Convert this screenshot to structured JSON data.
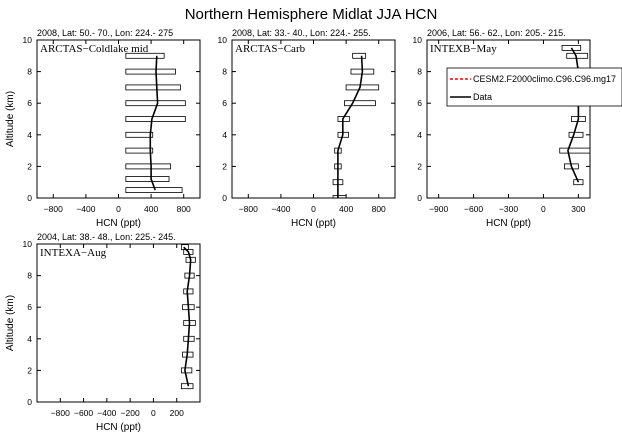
{
  "title": "Northern Hemisphere Midlat JJA HCN",
  "legend": {
    "entries": [
      {
        "label": "CESM2.F2000climo.C96.C96.mg17",
        "color": "#ff0000",
        "dash": true
      },
      {
        "label": "Data",
        "color": "#000000",
        "dash": false
      }
    ]
  },
  "chart_data": [
    {
      "type": "line",
      "subtitle": "2008, Lat:  50.- 70., Lon: 224.- 275",
      "panel_label": "ARCTAS−Coldlake mid",
      "xlabel": "HCN (ppt)",
      "ylabel": "Altitude (km)",
      "xlim": [
        -1000,
        1000
      ],
      "ylim": [
        0,
        10
      ],
      "xticks": [
        -800,
        -400,
        0,
        400,
        800
      ],
      "xtick_labels": [
        "−800",
        "−400",
        "0",
        "400",
        "800"
      ],
      "yticks": [
        0,
        2,
        4,
        6,
        8,
        10
      ],
      "series": [
        {
          "name": "Data",
          "x": [
            450,
            400,
            400,
            390,
            390,
            410,
            480,
            470,
            460,
            470
          ],
          "y": [
            0.5,
            1.2,
            2.0,
            3.0,
            4.0,
            5.0,
            6.0,
            7.0,
            8.0,
            9.0
          ],
          "xerr_low": [
            90,
            90,
            90,
            90,
            90,
            90,
            90,
            90,
            90,
            90
          ],
          "xerr_high": [
            780,
            620,
            640,
            420,
            420,
            820,
            820,
            760,
            700,
            560
          ]
        }
      ]
    },
    {
      "type": "line",
      "subtitle": "2008, Lat:  33.- 40., Lon: 224.- 255.",
      "panel_label": "ARCTAS−Carb",
      "xlabel": "HCN (ppt)",
      "ylabel": "",
      "xlim": [
        -1000,
        1000
      ],
      "ylim": [
        0,
        10
      ],
      "xticks": [
        -800,
        -400,
        0,
        400,
        800
      ],
      "xtick_labels": [
        "−800",
        "−400",
        "0",
        "400",
        "800"
      ],
      "yticks": [
        0,
        2,
        4,
        6,
        8,
        10
      ],
      "series": [
        {
          "name": "Data",
          "x": [
            300,
            300,
            300,
            300,
            360,
            360,
            480,
            570,
            600,
            590
          ],
          "y": [
            0.0,
            1.0,
            2.0,
            3.0,
            4.0,
            5.0,
            6.0,
            7.0,
            8.0,
            9.0
          ],
          "xerr_low": [
            240,
            240,
            260,
            260,
            300,
            300,
            380,
            400,
            460,
            480
          ],
          "xerr_high": [
            400,
            360,
            340,
            340,
            430,
            440,
            760,
            800,
            740,
            640
          ]
        }
      ]
    },
    {
      "type": "line",
      "subtitle": "2006, Lat:  56.- 62., Lon: 205.- 215.",
      "panel_label": "INTEXB−May",
      "xlabel": "HCN (ppt)",
      "ylabel": "",
      "xlim": [
        -1000,
        400
      ],
      "ylim": [
        0,
        10
      ],
      "xticks": [
        -900,
        -600,
        -300,
        0,
        300
      ],
      "xtick_labels": [
        "−900",
        "−600",
        "−300",
        "0",
        "300"
      ],
      "yticks": [
        0,
        2,
        4,
        6,
        8,
        10
      ],
      "series": [
        {
          "name": "Data",
          "x": [
            300,
            240,
            210,
            260,
            300,
            300,
            300,
            300,
            280,
            240
          ],
          "y": [
            1.0,
            2.0,
            3.0,
            4.0,
            5.0,
            6.0,
            7.0,
            8.0,
            9.0,
            9.5
          ],
          "xerr_low": [
            260,
            180,
            140,
            220,
            240,
            260,
            250,
            240,
            200,
            160
          ],
          "xerr_high": [
            340,
            300,
            420,
            340,
            360,
            340,
            340,
            400,
            380,
            320
          ]
        }
      ]
    },
    {
      "type": "line",
      "subtitle": "2004, Lat: 38.- 48., Lon: 225.- 245.",
      "panel_label": "INTEXA−Aug",
      "xlabel": "HCN (ppt)",
      "ylabel": "Altitude (km)",
      "xlim": [
        -1000,
        400
      ],
      "ylim": [
        0,
        10
      ],
      "xticks": [
        -800,
        -600,
        -400,
        -200,
        0,
        200
      ],
      "xtick_labels": [
        "−800",
        "−600",
        "−400",
        "−200",
        "0",
        "200"
      ],
      "yticks": [
        0,
        2,
        4,
        6,
        8,
        10
      ],
      "series": [
        {
          "name": "Data",
          "x": [
            300,
            270,
            290,
            300,
            310,
            300,
            290,
            310,
            320,
            300,
            260
          ],
          "y": [
            1.0,
            2.0,
            3.0,
            4.0,
            5.0,
            6.0,
            7.0,
            8.0,
            9.0,
            9.5,
            9.8
          ],
          "xerr_low": [
            240,
            240,
            250,
            260,
            260,
            250,
            260,
            270,
            280,
            260,
            240
          ],
          "xerr_high": [
            340,
            330,
            340,
            350,
            360,
            350,
            340,
            350,
            360,
            340,
            300
          ]
        }
      ]
    }
  ]
}
